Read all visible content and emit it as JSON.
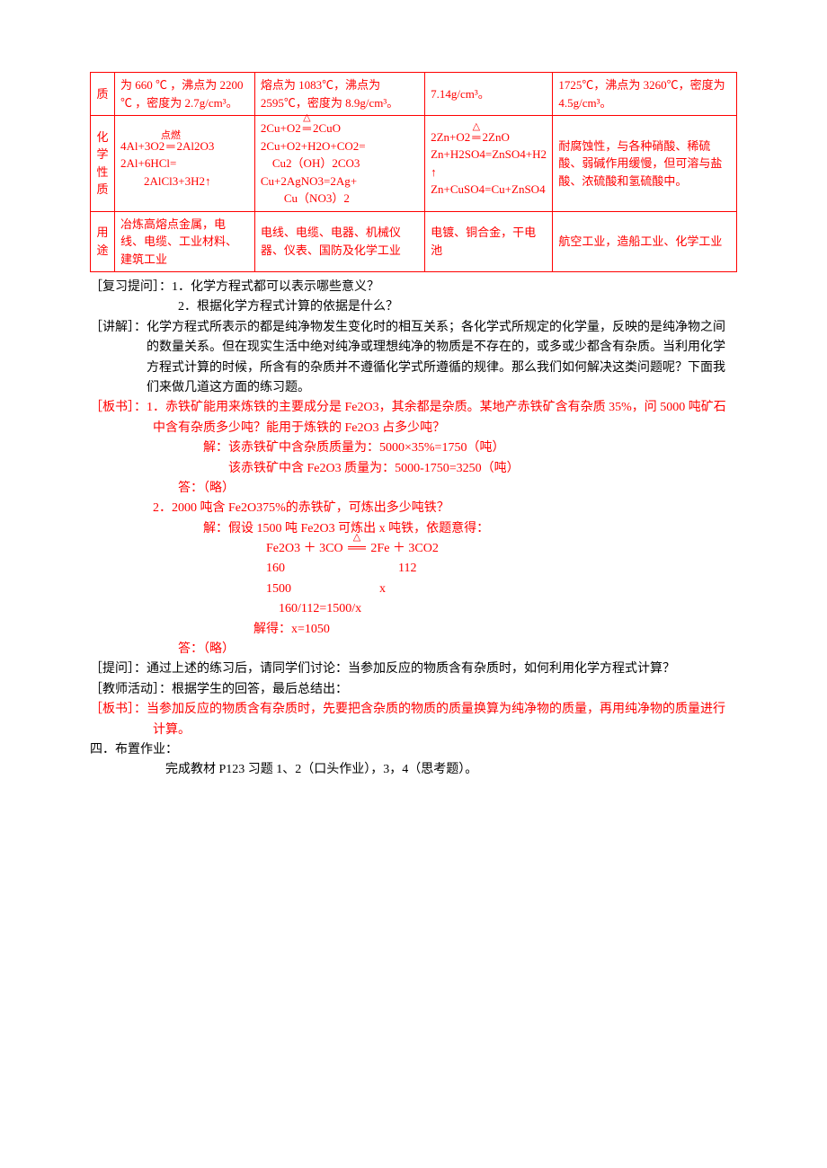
{
  "table": {
    "border_color": "#ff0000",
    "header_color": "#ff0000",
    "rows": [
      {
        "label": "质",
        "c1": "为 660 ℃ ，沸点为 2200 ℃ ，密度为 2.7g/cm³。",
        "c2": "熔点为 1083℃，沸点为 2595℃，密度为 8.9g/cm³。",
        "c3": "7.14g/cm³。",
        "c4": "1725℃，沸点为 3260℃，密度为 4.5g/cm³。"
      },
      {
        "label": "化学性质",
        "c1_l1": "4Al+3O2",
        "c1_l1_op": "点燃",
        "c1_l1b": "2Al2O3",
        "c1_l2": "2Al+6HCl=",
        "c1_l3": "　　2AlCl3+3H2↑",
        "c2_l1": "2Cu+O2",
        "c2_l1b": "2CuO",
        "c2_l2": "2Cu+O2+H2O+CO2=",
        "c2_l3": "　Cu2（OH）2CO3",
        "c2_l4": "Cu+2AgNO3=2Ag+",
        "c2_l5": "　　Cu（NO3）2",
        "c3_l1": "2Zn+O2",
        "c3_l1b": "2ZnO",
        "c3_l2": "Zn+H2SO4=ZnSO4+H2",
        "c3_l3": "↑",
        "c3_l4": "Zn+CuSO4=Cu+ZnSO4",
        "c4": "耐腐蚀性，与各种硝酸、稀硫酸、弱碱作用缓慢，但可溶与盐酸、浓硫酸和氢硫酸中。"
      },
      {
        "label": "用途",
        "c1": "冶炼高熔点金属，电线、电缆、工业材料、建筑工业",
        "c2": "电线、电缆、电器、机械仪器、仪表、国防及化学工业",
        "c3": "电镀、铜合金，干电池",
        "c4": "航空工业，造船工业、化学工业"
      }
    ]
  },
  "body": {
    "review_q": "［复习提问］：1．化学方程式都可以表示哪些意义？",
    "review_q2": "2．根据化学方程式计算的依据是什么？",
    "explain_label": "［讲解］：",
    "explain_text": "化学方程式所表示的都是纯净物发生变化时的相互关系；各化学式所规定的化学量，反映的是纯净物之间的数量关系。但在现实生活中绝对纯净或理想纯净的物质是不存在的，或多或少都含有杂质。当利用化学方程式计算的时候，所含有的杂质并不遵循化学式所遵循的规律。那么我们如何解决这类问题呢？下面我们来做几道这方面的练习题。",
    "board1_label": "［板书］：",
    "board1_q1": "1．赤铁矿能用来炼铁的主要成分是 Fe2O3，其余都是杂质。某地产赤铁矿含有杂质 35%，问 5000 吨矿石中含有杂质多少吨？能用于炼铁的 Fe2O3 占多少吨？",
    "board1_s1": "解：该赤铁矿中含杂质质量为：5000×35%=1750（吨）",
    "board1_s2": "该赤铁矿中含 Fe2O3 质量为：5000-1750=3250（吨）",
    "board1_a1": "答：（略）",
    "board1_q2": "2．2000 吨含 Fe2O375%的赤铁矿，可炼出多少吨铁？",
    "board1_s3": "解：假设 1500 吨 Fe2O3 可炼出 x 吨铁，依题意得：",
    "eq_l1_a": "Fe2O3 ＋ 3CO ",
    "eq_l1_b": " 2Fe ＋ 3CO2",
    "eq_l2": "160　　　　　　　　　112",
    "eq_l3": "1500　　　　　　　x",
    "eq_l4": "　160/112=1500/x",
    "eq_l5": "解得：x=1050",
    "board1_a2": "答：（略）",
    "ask_label": "［提问］：",
    "ask_text": "通过上述的练习后，请同学们讨论：当参加反应的物质含有杂质时，如何利用化学方程式计算？",
    "teacher": "［教师活动］：根据学生的回答，最后总结出：",
    "board2_label": "［板书］：",
    "board2_text": "当参加反应的物质含有杂质时，先要把含杂质的物质的质量换算为纯净物的质量，再用纯净物的质量进行计算。",
    "hw_head": "四．布置作业：",
    "hw_text": "完成教材 P123 习题 1、2（口头作业），3，4（思考题）。"
  },
  "styles": {
    "text_color": "#000000",
    "highlight_color": "#ff0000",
    "background": "#ffffff",
    "font_family": "SimSun",
    "font_size_pt": 10.5
  }
}
